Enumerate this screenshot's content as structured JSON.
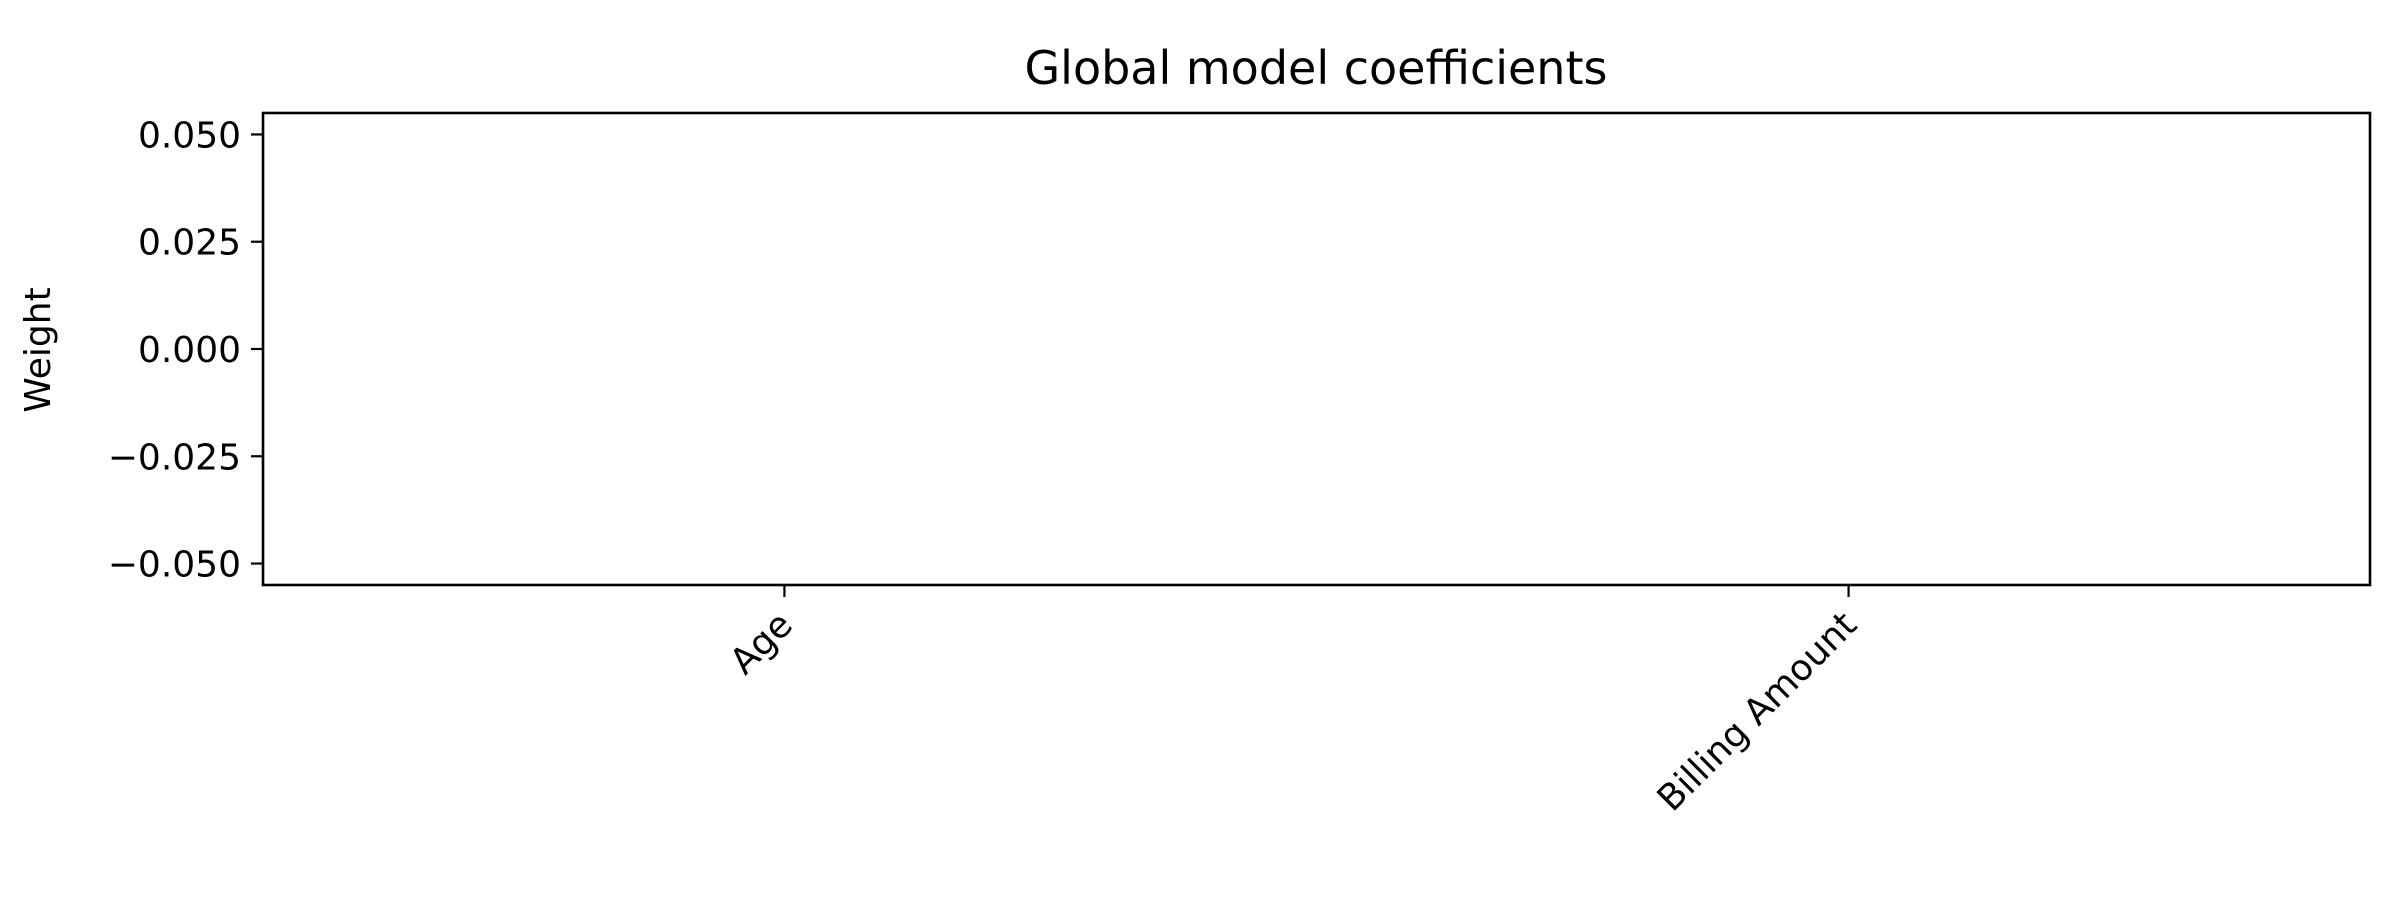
{
  "chart_data": {
    "type": "bar",
    "title": "Global model coefficients",
    "xlabel": "",
    "ylabel": "Weight",
    "categories": [
      "Age",
      "Billing Amount"
    ],
    "values": [
      0,
      0
    ],
    "ylim": [
      -0.055,
      0.055
    ],
    "yticks": [
      0.05,
      0.025,
      0.0,
      -0.025,
      -0.05
    ],
    "ytick_labels": [
      "0.050",
      "0.025",
      "0.000",
      "−0.025",
      "−0.050"
    ],
    "xtick_rotation_deg": -45,
    "grid": false,
    "legend": "none"
  }
}
